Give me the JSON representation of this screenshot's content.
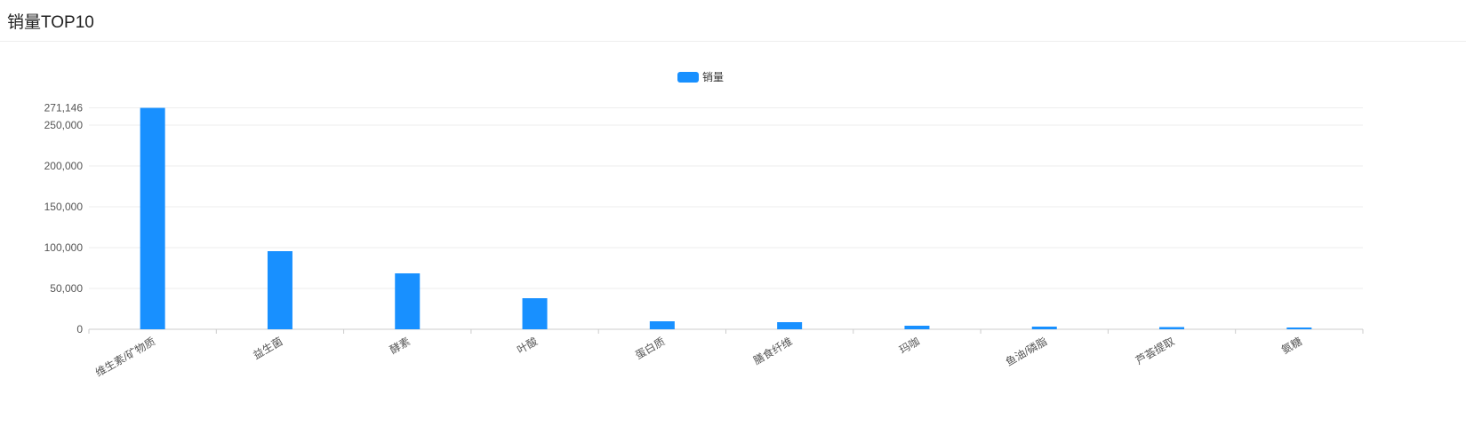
{
  "header": {
    "title": "销量TOP10"
  },
  "chart_data": {
    "type": "bar",
    "title": "",
    "xlabel": "",
    "ylabel": "",
    "legend": {
      "position": "top-center",
      "entries": [
        "销量"
      ]
    },
    "color": "#1890ff",
    "grid": true,
    "categories": [
      "维生素/矿物质",
      "益生菌",
      "酵素",
      "叶酸",
      "蛋白质",
      "膳食纤维",
      "玛咖",
      "鱼油/磷脂",
      "芦荟提取",
      "氨糖"
    ],
    "series": [
      {
        "name": "销量",
        "values": [
          271146,
          95650,
          68480,
          38040,
          9780,
          8700,
          4350,
          3260,
          2700,
          2170
        ]
      }
    ],
    "ylim": [
      0,
      271146
    ],
    "yticks": [
      "0",
      "50,000",
      "100,000",
      "150,000",
      "200,000",
      "250,000",
      "271,146"
    ]
  }
}
